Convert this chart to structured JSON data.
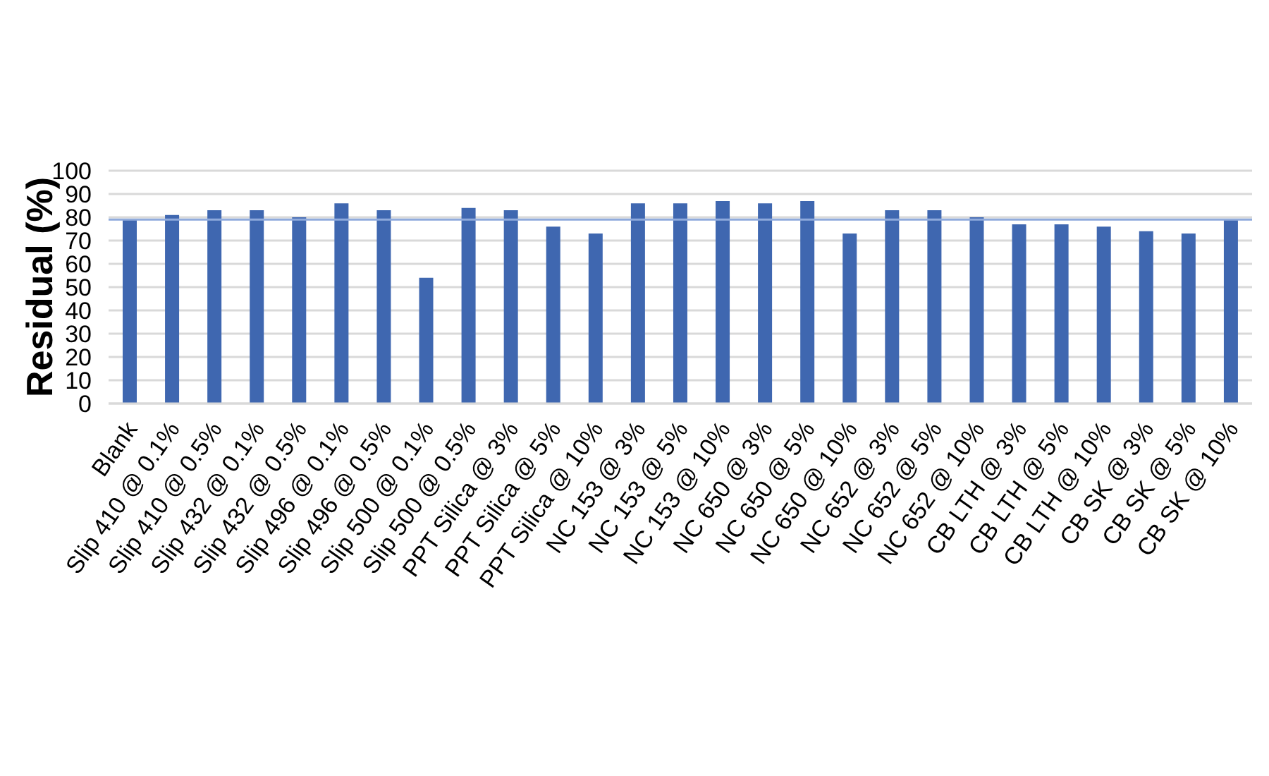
{
  "chart_data": {
    "type": "bar",
    "ylabel": "Residual (%)",
    "categories": [
      "Blank",
      "Slip 410 @ 0.1%",
      "Slip 410 @ 0.5%",
      "Slip 432 @ 0.1%",
      "Slip 432 @ 0.5%",
      "Slip 496 @ 0.1%",
      "Slip 496 @ 0.5%",
      "Slip 500 @ 0.1%",
      "Slip 500 @ 0.5%",
      "PPT Silica @ 3%",
      "PPT Silica @ 5%",
      "PPT Silica @ 10%",
      "NC 153 @ 3%",
      "NC 153 @ 5%",
      "NC 153 @ 10%",
      "NC 650 @ 3%",
      "NC 650 @ 5%",
      "NC 650 @ 10%",
      "NC 652 @ 3%",
      "NC 652 @ 5%",
      "NC 652 @ 10%",
      "CB LTH @ 3%",
      "CB LTH @ 5%",
      "CB LTH @ 10%",
      "CB SK @ 3%",
      "CB SK @ 5%",
      "CB SK @ 10%"
    ],
    "values": [
      79,
      81,
      83,
      83,
      80,
      86,
      83,
      54,
      84,
      83,
      76,
      73,
      86,
      86,
      87,
      86,
      87,
      73,
      83,
      83,
      80,
      77,
      77,
      76,
      74,
      73,
      79
    ],
    "color": "#3f67b0",
    "ylim": [
      0,
      100
    ],
    "yticks": [
      0,
      10,
      20,
      30,
      40,
      50,
      60,
      70,
      80,
      90,
      100
    ],
    "grid": "y",
    "ref_lines": [
      {
        "axis": "y",
        "value": 79,
        "color": "#8faadc"
      }
    ]
  }
}
